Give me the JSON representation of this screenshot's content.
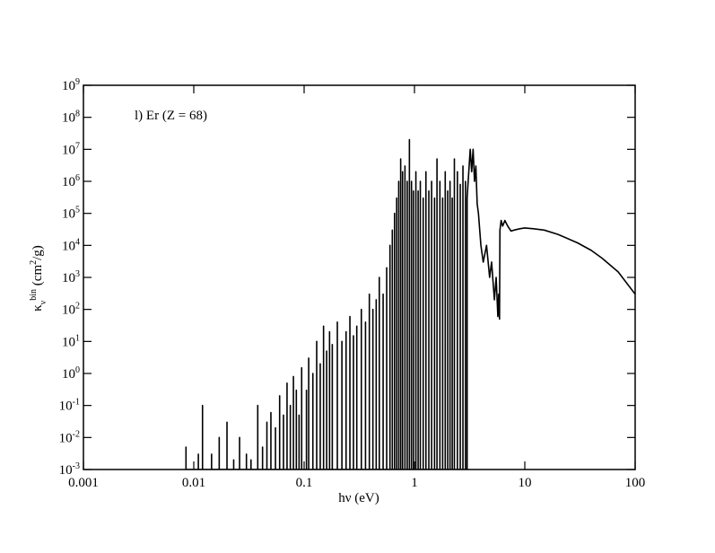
{
  "chart_data": {
    "type": "line",
    "annotation": "l) Er (Z = 68)",
    "x_label": "hν (eV)",
    "y_label": "κ_{ν}^{bin} (cm^{2}/g)",
    "xscale": "log",
    "yscale": "log",
    "xlim": [
      0.001,
      100
    ],
    "ylim": [
      0.001,
      1000000000
    ],
    "xticks": [
      0.001,
      0.01,
      0.1,
      1,
      10,
      100
    ],
    "yticks": [
      {
        "value": 0.001,
        "label": "10^{-3}"
      },
      {
        "value": 0.01,
        "label": "10^{-2}"
      },
      {
        "value": 0.1,
        "label": "10^{-1}"
      },
      {
        "value": 1,
        "label": "10^{0}"
      },
      {
        "value": 10,
        "label": "10^{1}"
      },
      {
        "value": 100,
        "label": "10^{2}"
      },
      {
        "value": 1000,
        "label": "10^{3}"
      },
      {
        "value": 10000,
        "label": "10^{4}"
      },
      {
        "value": 100000,
        "label": "10^{5}"
      },
      {
        "value": 1000000,
        "label": "10^{6}"
      },
      {
        "value": 10000000,
        "label": "10^{7}"
      },
      {
        "value": 100000000,
        "label": "10^{8}"
      },
      {
        "value": 1000000000,
        "label": "10^{9}"
      }
    ],
    "color": "#000000",
    "x": [
      0.0085,
      0.0085,
      0.0085,
      0.011,
      0.011,
      0.011,
      0.012,
      0.012,
      0.012,
      0.0145,
      0.0145,
      0.0145,
      0.017,
      0.017,
      0.017,
      0.02,
      0.02,
      0.02,
      0.023,
      0.023,
      0.023,
      0.026,
      0.026,
      0.026,
      0.03,
      0.03,
      0.03,
      0.033,
      0.033,
      0.033,
      0.038,
      0.038,
      0.038,
      0.042,
      0.042,
      0.042,
      0.046,
      0.046,
      0.046,
      0.05,
      0.05,
      0.05,
      0.055,
      0.055,
      0.055,
      0.06,
      0.06,
      0.06,
      0.065,
      0.065,
      0.065,
      0.07,
      0.07,
      0.07,
      0.075,
      0.075,
      0.075,
      0.08,
      0.08,
      0.08,
      0.085,
      0.085,
      0.085,
      0.09,
      0.09,
      0.09,
      0.095,
      0.095,
      0.095,
      0.105,
      0.105,
      0.105,
      0.11,
      0.11,
      0.11,
      0.12,
      0.12,
      0.12,
      0.13,
      0.13,
      0.13,
      0.14,
      0.14,
      0.14,
      0.15,
      0.15,
      0.15,
      0.16,
      0.16,
      0.16,
      0.17,
      0.17,
      0.17,
      0.18,
      0.18,
      0.18,
      0.2,
      0.2,
      0.2,
      0.22,
      0.22,
      0.22,
      0.24,
      0.24,
      0.24,
      0.26,
      0.26,
      0.26,
      0.28,
      0.28,
      0.28,
      0.3,
      0.3,
      0.3,
      0.33,
      0.33,
      0.33,
      0.36,
      0.36,
      0.36,
      0.39,
      0.39,
      0.39,
      0.42,
      0.42,
      0.42,
      0.45,
      0.45,
      0.45,
      0.48,
      0.48,
      0.48,
      0.52,
      0.52,
      0.52,
      0.56,
      0.56,
      0.56,
      0.6,
      0.6,
      0.6,
      0.63,
      0.63,
      0.63,
      0.66,
      0.66,
      0.66,
      0.69,
      0.69,
      0.69,
      0.72,
      0.72,
      0.72,
      0.75,
      0.75,
      0.75,
      0.78,
      0.78,
      0.78,
      0.82,
      0.82,
      0.82,
      0.86,
      0.86,
      0.86,
      0.9,
      0.9,
      0.9,
      0.94,
      0.94,
      0.94,
      0.98,
      0.98,
      0.98,
      1.03,
      1.03,
      1.03,
      1.08,
      1.08,
      1.08,
      1.13,
      1.13,
      1.13,
      1.2,
      1.2,
      1.2,
      1.27,
      1.27,
      1.27,
      1.35,
      1.35,
      1.35,
      1.43,
      1.43,
      1.43,
      1.52,
      1.52,
      1.52,
      1.6,
      1.6,
      1.6,
      1.7,
      1.7,
      1.7,
      1.8,
      1.8,
      1.8,
      1.9,
      1.9,
      1.9,
      2,
      2,
      2,
      2.1,
      2.1,
      2.1,
      2.2,
      2.2,
      2.2,
      2.3,
      2.3,
      2.3,
      2.45,
      2.45,
      2.45,
      2.6,
      2.6,
      2.6,
      2.75,
      2.75,
      2.75,
      2.9,
      2.9,
      2.9,
      3,
      3,
      3.2,
      3.3,
      3.4,
      3.5,
      3.6,
      3.7,
      3.8,
      4,
      4.2,
      4.5,
      4.8,
      5,
      5.3,
      5.5,
      5.7,
      5.8,
      5.9,
      5.95,
      6.1,
      6.3,
      6.6,
      7,
      7.5,
      8,
      9,
      10,
      12,
      15,
      20,
      30,
      40,
      50,
      70,
      100
    ],
    "values": [
      0.001,
      0.005,
      0.001,
      0.001,
      0.003,
      0.001,
      0.001,
      0.1,
      0.001,
      0.001,
      0.003,
      0.001,
      0.001,
      0.01,
      0.001,
      0.001,
      0.03,
      0.001,
      0.001,
      0.002,
      0.001,
      0.001,
      0.01,
      0.001,
      0.001,
      0.003,
      0.001,
      0.001,
      0.002,
      0.001,
      0.001,
      0.1,
      0.001,
      0.001,
      0.005,
      0.001,
      0.001,
      0.03,
      0.001,
      0.001,
      0.06,
      0.001,
      0.001,
      0.02,
      0.001,
      0.001,
      0.2,
      0.001,
      0.001,
      0.05,
      0.001,
      0.001,
      0.5,
      0.001,
      0.001,
      0.1,
      0.001,
      0.001,
      0.8,
      0.001,
      0.001,
      0.3,
      0.001,
      0.001,
      0.05,
      0.001,
      0.001,
      1.5,
      0.001,
      0.001,
      0.3,
      0.001,
      0.001,
      3,
      0.001,
      0.001,
      1,
      0.001,
      0.001,
      10,
      0.001,
      0.001,
      2,
      0.001,
      0.001,
      30,
      0.001,
      0.001,
      5,
      0.001,
      0.001,
      20,
      0.001,
      0.001,
      8,
      0.001,
      0.001,
      40,
      0.001,
      0.001,
      10,
      0.001,
      0.001,
      20,
      0.001,
      0.001,
      60,
      0.001,
      0.001,
      15,
      0.001,
      0.001,
      30,
      0.001,
      0.001,
      100,
      0.001,
      0.001,
      40,
      0.001,
      0.001,
      300,
      0.001,
      0.001,
      100,
      0.001,
      0.001,
      200,
      0.001,
      0.001,
      1000,
      0.001,
      0.001,
      300,
      0.001,
      0.001,
      2000,
      0.001,
      0.001,
      10000,
      0.001,
      0.001,
      30000,
      0.001,
      0.001,
      100000,
      0.001,
      0.001,
      300000,
      0.001,
      0.001,
      1000000,
      0.001,
      0.001,
      5000000,
      0.001,
      0.001,
      2000000,
      0.001,
      0.001,
      3000000,
      0.001,
      0.001,
      1000000,
      0.001,
      0.001,
      20000000,
      0.001,
      0.001,
      1000000,
      0.001,
      0.001,
      500000,
      0.001,
      0.001,
      2000000,
      0.001,
      0.001,
      500000,
      0.001,
      0.001,
      1000000,
      0.001,
      0.001,
      300000,
      0.001,
      0.001,
      2000000,
      0.001,
      0.001,
      500000,
      0.001,
      0.001,
      1000000,
      0.001,
      0.001,
      300000,
      0.001,
      0.001,
      5000000,
      0.001,
      0.001,
      1000000,
      0.001,
      0.001,
      300000,
      0.001,
      0.001,
      2000000,
      0.001,
      0.001,
      500000,
      0.001,
      0.001,
      1000000,
      0.001,
      0.001,
      300000,
      0.001,
      0.001,
      5000000,
      0.001,
      0.001,
      2000000,
      0.001,
      0.001,
      800000,
      0.001,
      0.001,
      3000000,
      0.001,
      0.001,
      1000000,
      0.001,
      0.001,
      300000,
      10000000,
      2000000,
      10000000,
      1000000,
      3000000,
      200000,
      100000,
      10000,
      3000,
      10000,
      1000,
      3000,
      200,
      1000,
      60,
      300,
      50,
      30000,
      60000,
      40000,
      60000,
      40000,
      28000,
      30000,
      33000,
      35000,
      33000,
      30000,
      22000,
      12000,
      7000,
      4000,
      1500,
      300
    ]
  }
}
